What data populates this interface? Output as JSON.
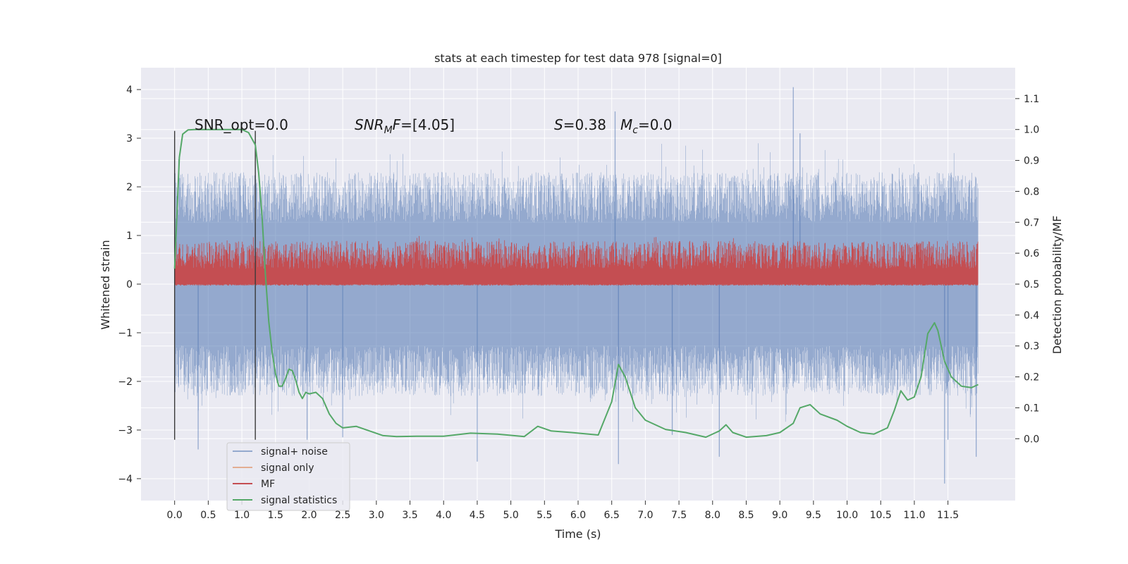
{
  "chart_data": {
    "type": "line",
    "title": "stats at each timestep for test data 978 [signal=0]",
    "xlabel": "Time (s)",
    "ylabel_left": "Whitened strain",
    "ylabel_right": "Detection probability/MF",
    "xlim": [
      -0.5,
      12.5
    ],
    "ylim_left": [
      -4.45,
      4.45
    ],
    "ylim_right": [
      -0.2,
      1.2
    ],
    "grid": true,
    "x_ticks": [
      0.0,
      0.5,
      1.0,
      1.5,
      2.0,
      2.5,
      3.0,
      3.5,
      4.0,
      4.5,
      5.0,
      5.5,
      6.0,
      6.5,
      7.0,
      7.5,
      8.0,
      8.5,
      9.0,
      9.5,
      10.0,
      10.5,
      11.0,
      11.5
    ],
    "x_tick_labels": [
      "0.0",
      "0.5",
      "1.0",
      "1.5",
      "2.0",
      "2.5",
      "3.0",
      "3.5",
      "4.0",
      "4.5",
      "5.0",
      "5.5",
      "6.0",
      "6.5",
      "7.0",
      "7.5",
      "8.0",
      "8.5",
      "9.0",
      "9.5",
      "10.0",
      "10.5",
      "11.0",
      "11.5"
    ],
    "y_ticks_left": [
      4,
      3,
      2,
      1,
      0,
      -1,
      -2,
      -3,
      -4
    ],
    "y_tick_labels_left": [
      "4",
      "3",
      "2",
      "1",
      "0",
      "−1",
      "−2",
      "−3",
      "−4"
    ],
    "y_ticks_right": [
      1.1,
      1.0,
      0.9,
      0.8,
      0.7,
      0.6,
      0.5,
      0.4,
      0.3,
      0.2,
      0.1,
      0.0
    ],
    "y_tick_labels_right": [
      "1.1",
      "1.0",
      "0.9",
      "0.8",
      "0.7",
      "0.6",
      "0.5",
      "0.4",
      "0.3",
      "0.2",
      "0.1",
      "0.0"
    ],
    "annotations": {
      "snr_opt": "SNR_opt=0.0",
      "snr_mf_name": "SNR",
      "snr_mf_sub": "M",
      "snr_mf_tail": "F",
      "snr_mf_value": "=[4.05]",
      "s_name": "S",
      "s_value": "=0.38",
      "mc_name": "M",
      "mc_sub": "c",
      "mc_value": "=0.0"
    },
    "vlines_x": [
      0.0,
      1.2
    ],
    "legend_position": "lower-left",
    "series": [
      {
        "name": "signal+ noise",
        "color": "#4c72b0",
        "axis": "left",
        "style": "dense noise trace",
        "x_range": [
          0.0,
          11.95
        ],
        "envelope_typical": [
          -2.3,
          2.3
        ],
        "spikes": [
          [
            0.35,
            -3.4
          ],
          [
            1.97,
            -3.2
          ],
          [
            4.5,
            -3.65
          ],
          [
            6.6,
            -3.7
          ],
          [
            6.55,
            3.55
          ],
          [
            8.1,
            -3.55
          ],
          [
            9.2,
            4.05
          ],
          [
            11.45,
            -4.1
          ],
          [
            11.92,
            -3.55
          ],
          [
            11.5,
            -3.2
          ],
          [
            9.3,
            3.1
          ],
          [
            7.4,
            -3.1
          ],
          [
            2.5,
            -3.15
          ]
        ]
      },
      {
        "name": "signal only",
        "color": "#dd8452",
        "axis": "left",
        "x": [
          0.0,
          11.95
        ],
        "y": [
          0.0,
          0.0
        ]
      },
      {
        "name": "MF",
        "color": "#c44e52",
        "axis": "right",
        "style": "dense noise band",
        "x_range": [
          0.0,
          11.95
        ],
        "band": [
          0.5,
          0.64
        ],
        "peak": 0.66
      },
      {
        "name": "signal statistics",
        "color": "#55a868",
        "axis": "right",
        "x": [
          0.0,
          0.07,
          0.12,
          0.2,
          0.3,
          0.5,
          0.8,
          1.0,
          1.1,
          1.2,
          1.25,
          1.3,
          1.35,
          1.4,
          1.45,
          1.5,
          1.55,
          1.6,
          1.65,
          1.7,
          1.75,
          1.8,
          1.85,
          1.9,
          1.95,
          2.0,
          2.1,
          2.2,
          2.3,
          2.4,
          2.5,
          2.7,
          2.9,
          3.1,
          3.3,
          3.6,
          4.0,
          4.4,
          4.8,
          5.2,
          5.4,
          5.6,
          5.9,
          6.3,
          6.5,
          6.6,
          6.7,
          6.85,
          7.0,
          7.3,
          7.6,
          7.9,
          8.1,
          8.2,
          8.3,
          8.5,
          8.8,
          9.0,
          9.2,
          9.3,
          9.45,
          9.6,
          9.85,
          10.0,
          10.2,
          10.4,
          10.6,
          10.7,
          10.8,
          10.9,
          11.0,
          11.1,
          11.2,
          11.3,
          11.35,
          11.45,
          11.55,
          11.7,
          11.85,
          11.95
        ],
        "y": [
          0.55,
          0.91,
          0.985,
          0.999,
          1.0,
          1.0,
          1.0,
          1.0,
          0.99,
          0.95,
          0.86,
          0.72,
          0.53,
          0.38,
          0.28,
          0.21,
          0.17,
          0.17,
          0.195,
          0.225,
          0.22,
          0.19,
          0.15,
          0.13,
          0.15,
          0.145,
          0.15,
          0.13,
          0.08,
          0.05,
          0.035,
          0.04,
          0.025,
          0.01,
          0.007,
          0.008,
          0.008,
          0.018,
          0.015,
          0.007,
          0.04,
          0.025,
          0.02,
          0.012,
          0.12,
          0.24,
          0.2,
          0.1,
          0.06,
          0.03,
          0.02,
          0.005,
          0.025,
          0.045,
          0.02,
          0.005,
          0.01,
          0.02,
          0.05,
          0.1,
          0.11,
          0.08,
          0.06,
          0.04,
          0.02,
          0.015,
          0.035,
          0.09,
          0.155,
          0.125,
          0.135,
          0.2,
          0.34,
          0.375,
          0.35,
          0.25,
          0.2,
          0.17,
          0.165,
          0.175
        ]
      }
    ]
  }
}
